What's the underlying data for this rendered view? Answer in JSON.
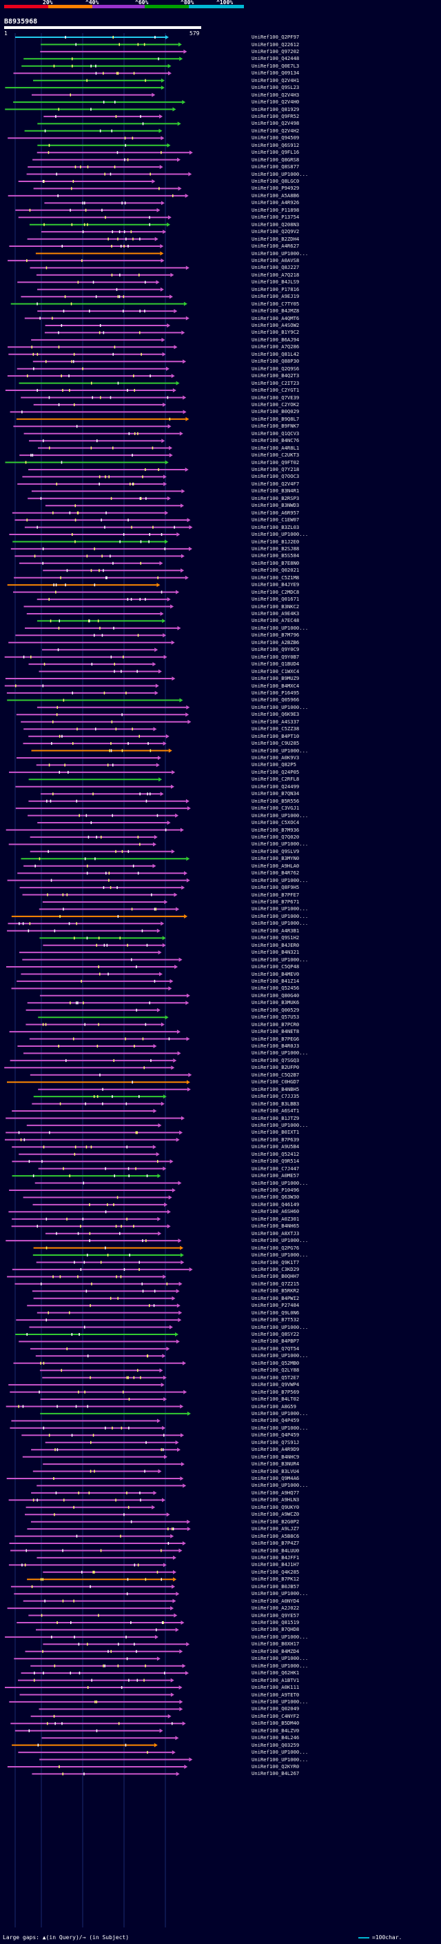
{
  "legend": {
    "labels": [
      "20%",
      "^40%",
      "^60%",
      "^80%",
      "^100%"
    ],
    "colors": [
      "#e8001c",
      "#ff8000",
      "#9933cc",
      "#00a000",
      "#00b8d4"
    ]
  },
  "query": {
    "id": "B8935968",
    "start": "1",
    "end": "579"
  },
  "colors": {
    "background": "#00002a",
    "magenta_hit": "#cc55cc",
    "green_hit": "#33cc33",
    "cyan_hit": "#22ccee",
    "orange_hit": "#ff8800",
    "red_hit": "#dd1133",
    "gap_white": "#ffffff",
    "gap_yellow": "#ffff66",
    "grid": "#1a2a70"
  },
  "hits": [
    "UniRef100_Q2PF97",
    "UniRef100_Q22612",
    "UniRef100_Q97202",
    "UniRef100_Q42448",
    "UniRef100_Q0E7L3",
    "UniRef100_Q09134",
    "UniRef100_Q2V4H1",
    "UniRef100_Q9SL23",
    "UniRef100_Q2V4H3",
    "UniRef100_Q2V4H0",
    "UniRef100_Q81929",
    "UniRef100_Q9FR52",
    "UniRef100_Q2V498",
    "UniRef100_Q2V4H2",
    "UniRef100_Q94509",
    "UniRef100_Q6S912",
    "UniRef100_Q9FL16",
    "UniRef100_Q8GRS8",
    "UniRef100_Q8S877",
    "UniRef100_UP1000...",
    "UniRef100_Q8LGC0",
    "UniRef100_P94929",
    "UniRef100_A5A8B6",
    "UniRef100_A4R926",
    "UniRef100_P11898",
    "UniRef100_P13754",
    "UniRef100_Q208N3",
    "UniRef100_Q2Q9V2",
    "UniRef100_B2ZDH4",
    "UniRef100_A4R627",
    "UniRef100_UP1000...",
    "UniRef100_A0AVS8",
    "UniRef100_Q8J227",
    "UniRef100_A7Q218",
    "UniRef100_B4JLS9",
    "UniRef100_P17816",
    "UniRef100_A9EJ19",
    "UniRef100_C7TY05",
    "UniRef100_B4JMZ8",
    "UniRef100_A4QMT6",
    "UniRef100_A4SOW2",
    "UniRef100_B1Y9C2",
    "UniRef100_B6AJ94",
    "UniRef100_A7Q286",
    "UniRef100_Q81L42",
    "UniRef100_Q88P30",
    "UniRef100_Q2Q9S6",
    "UniRef100_B4Q2T3",
    "UniRef100_C2IT23",
    "UniRef100_C2YGT1",
    "UniRef100_Q7VE39",
    "UniRef100_C2YOK2",
    "UniRef100_B0Q029",
    "UniRef100_B9Q8L7",
    "UniRef100_B9FNK7",
    "UniRef100_Q1QCV3",
    "UniRef100_B4NC76",
    "UniRef100_A4R8L1",
    "UniRef100_C2UKT3",
    "UniRef100_Q9FT02",
    "UniRef100_Q7Y218",
    "UniRef100_Q7OOC3",
    "UniRef100_Q2V4F7",
    "UniRef100_B3N4R1",
    "UniRef100_B2RSP3",
    "UniRef100_B3NWD3",
    "UniRef100_A6R957",
    "UniRef100_C1EW07",
    "UniRef100_B3ZL03",
    "UniRef100_UP1000...",
    "UniRef100_B1J2E0",
    "UniRef100_B2SJ88",
    "UniRef100_B5S584",
    "UniRef100_B7E8N0",
    "UniRef100_Q02021",
    "UniRef100_C5Z1M8",
    "UniRef100_B4JYE9",
    "UniRef100_C2MDC8",
    "UniRef100_Q01671",
    "UniRef100_B3NKC2",
    "UniRef100_A9E4K3",
    "UniRef100_A7EC48",
    "UniRef100_UP1000...",
    "UniRef100_B7M796",
    "UniRef100_A2BZB6",
    "UniRef100_Q9Y0C9",
    "UniRef100_Q9Y0B7",
    "UniRef100_Q1BUD4",
    "UniRef100_C1WXC4",
    "UniRef100_B9MUZ9",
    "UniRef100_B4MXC4",
    "UniRef100_P16495",
    "UniRef100_Q05966",
    "UniRef100_UP1000...",
    "UniRef100_Q6K9E3",
    "UniRef100_A4S337",
    "UniRef100_C5ZZ38",
    "UniRef100_B4PT10",
    "UniRef100_C9U285",
    "UniRef100_UP1000...",
    "UniRef100_A0K9V3",
    "UniRef100_Q82P5",
    "UniRef100_Q24P05",
    "UniRef100_C2RFL8",
    "UniRef100_Q24499",
    "UniRef100_B7QN34",
    "UniRef100_B5R556",
    "UniRef100_C3VGJ1",
    "UniRef100_UP1000...",
    "UniRef100_C5XOC4",
    "UniRef100_B7M936",
    "UniRef100_Q7Q020",
    "UniRef100_UP1000...",
    "UniRef100_Q9SLV9",
    "UniRef100_B3MYN0",
    "UniRef100_A9HLA0",
    "UniRef100_B4R762",
    "UniRef100_UP1000...",
    "UniRef100_Q8F9H5",
    "UniRef100_B7PFE7",
    "UniRef100_B7P671",
    "UniRef100_UP1000...",
    "UniRef100_UP1000...",
    "UniRef100_UP1000...",
    "UniRef100_A4R3B1",
    "UniRef100_Q9S1H2",
    "UniRef100_B4JER0",
    "UniRef100_B4N321",
    "UniRef100_UP1000...",
    "UniRef100_C5QP48",
    "UniRef100_B4MEV0",
    "UniRef100_B41Z14",
    "UniRef100_Q52456",
    "UniRef100_Q80G40",
    "UniRef100_B3MUK6",
    "UniRef100_Q00529",
    "UniRef100_Q57U53",
    "UniRef100_B7PCR0",
    "UniRef100_B4NET8",
    "UniRef100_B7PEG6",
    "UniRef100_B4R0J3",
    "UniRef100_UP1000...",
    "UniRef100_Q7SGQ3",
    "UniRef100_B2UFP0",
    "UniRef100_C5Q2B7",
    "UniRef100_C0HGD7",
    "UniRef100_B4NBH5",
    "UniRef100_C7JJ35",
    "UniRef100_B3LBB3",
    "UniRef100_A6S4T1",
    "UniRef100_B1JTZ9",
    "UniRef100_UP1000...",
    "UniRef100_B0IXT1",
    "UniRef100_B7P639",
    "UniRef100_A9U5B4",
    "UniRef100_Q52412",
    "UniRef100_Q9R514",
    "UniRef100_C7J447",
    "UniRef100_A0ME57",
    "UniRef100_UP1000...",
    "UniRef100_P10496",
    "UniRef100_Q63W30",
    "UniRef100_Q46149",
    "UniRef100_A6SH60",
    "UniRef100_A0Z301",
    "UniRef100_B4NH65",
    "UniRef100_A8XTJ3",
    "UniRef100_UP1000...",
    "UniRef100_Q2PG76",
    "UniRef100_UP1000...",
    "UniRef100_Q9K1T7",
    "UniRef100_C3KD29",
    "UniRef100_B0QHH7",
    "UniRef100_Q7Z215",
    "UniRef100_B5RKR2",
    "UniRef100_B4PWI2",
    "UniRef100_P27484",
    "UniRef100_Q9L0N6",
    "UniRef100_B7T532",
    "UniRef100_UP1000...",
    "UniRef100_Q8SY22",
    "UniRef100_B4PBP7",
    "UniRef100_Q7QT54",
    "UniRef100_UP1000...",
    "UniRef100_Q52MB0",
    "UniRef100_Q2LY88",
    "UniRef100_Q5T2E7",
    "UniRef100_Q9VWP4",
    "UniRef100_B7P569",
    "UniRef100_B4LT02",
    "UniRef100_A8G59",
    "UniRef100_UP1000...",
    "UniRef100_Q4P459",
    "UniRef100_UP1000...",
    "UniRef100_Q4P459",
    "UniRef100_Q7S91J",
    "UniRef100_A4R9D9",
    "UniRef100_B4NHC9",
    "UniRef100_B3NUR4",
    "UniRef100_B3LVU4",
    "UniRef100_Q9M4A6",
    "UniRef100_UP1000...",
    "UniRef100_A9HQ77",
    "UniRef100_A9HLN3",
    "UniRef100_Q9UKY0",
    "UniRef100_A9WCZ0",
    "UniRef100_B2G0P2",
    "UniRef100_A9LJZ7",
    "UniRef100_A5B8C6",
    "UniRef100_B7P4Z7",
    "UniRef100_B4LUU0",
    "UniRef100_B4JFF1",
    "UniRef100_B4J1H7",
    "UniRef100_Q4K285",
    "UniRef100_B7PK12",
    "UniRef100_B0JB57",
    "UniRef100_UP1000...",
    "UniRef100_A0NYD4",
    "UniRef100_A2J022",
    "UniRef100_Q9YE57",
    "UniRef100_Q81519",
    "UniRef100_B7QHD8",
    "UniRef100_UP1000...",
    "UniRef100_B0XH17",
    "UniRef100_B4MZD4",
    "UniRef100_UP1000...",
    "UniRef100_UP1000...",
    "UniRef100_Q62HK1",
    "UniRef100_A1BTV1",
    "UniRef100_A0K111",
    "UniRef100_A9TET0",
    "UniRef100_UP1000...",
    "UniRef100_Q02049",
    "UniRef100_C4NYF2",
    "UniRef100_B5DM40",
    "UniRef100_B4LZV0",
    "UniRef100_B4L246",
    "UniRef100_Q03259",
    "UniRef100_UP1000...",
    "UniRef100_UP1000...",
    "UniRef100_Q2KYR0",
    "UniRef100_B4L267"
  ],
  "footer": {
    "left": "Large gaps: ▲(in Query)/→ (in Subject)",
    "right": "=100char."
  }
}
